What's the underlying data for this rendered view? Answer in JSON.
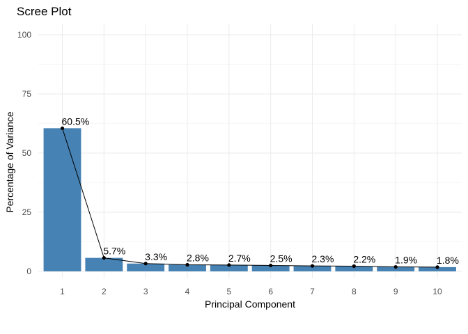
{
  "chart_data": {
    "type": "bar",
    "title": "Scree Plot",
    "xlabel": "Principal Component",
    "ylabel": "Percentage of Variance",
    "categories": [
      "1",
      "2",
      "3",
      "4",
      "5",
      "6",
      "7",
      "8",
      "9",
      "10"
    ],
    "values": [
      60.5,
      5.7,
      3.3,
      2.8,
      2.7,
      2.5,
      2.3,
      2.2,
      1.9,
      1.8
    ],
    "data_labels": [
      "60.5%",
      "5.7%",
      "3.3%",
      "2.8%",
      "2.7%",
      "2.5%",
      "2.3%",
      "2.2%",
      "1.9%",
      "1.8%"
    ],
    "ylim": [
      0,
      100
    ],
    "yticks": [
      0,
      25,
      50,
      75,
      100
    ],
    "overlay": "line-with-points",
    "grid": true,
    "legend": "none",
    "colors": {
      "bar": "#4682b4",
      "line": "#000000",
      "point": "#000000"
    }
  }
}
